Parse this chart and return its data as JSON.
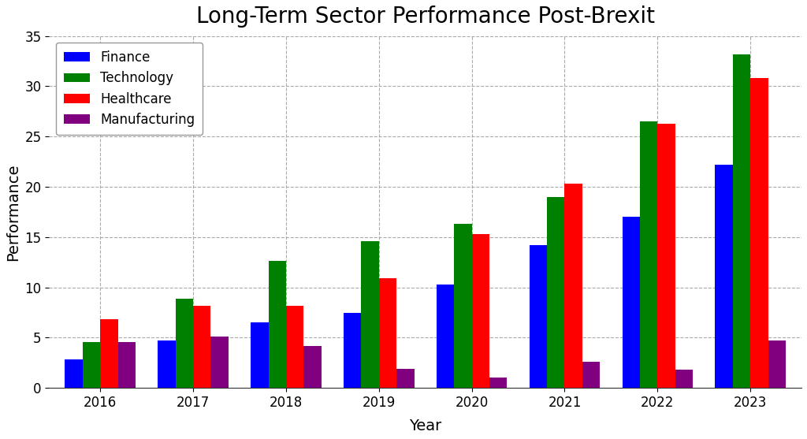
{
  "title": "Long-Term Sector Performance Post-Brexit",
  "xlabel": "Year",
  "ylabel": "Performance",
  "years": [
    2016,
    2017,
    2018,
    2019,
    2020,
    2021,
    2022,
    2023
  ],
  "sectors": {
    "Finance": {
      "values": [
        2.8,
        4.7,
        6.5,
        7.5,
        10.3,
        14.2,
        17.0,
        22.2
      ],
      "color": "#0000ff"
    },
    "Technology": {
      "values": [
        4.6,
        8.9,
        12.6,
        14.6,
        16.3,
        19.0,
        26.5,
        33.2
      ],
      "color": "#008000"
    },
    "Healthcare": {
      "values": [
        6.8,
        8.2,
        8.2,
        10.9,
        15.3,
        20.3,
        26.3,
        30.8
      ],
      "color": "#ff0000"
    },
    "Manufacturing": {
      "values": [
        4.6,
        5.1,
        4.2,
        1.9,
        1.0,
        2.6,
        1.8,
        4.7
      ],
      "color": "#800080"
    }
  },
  "ylim": [
    0,
    35
  ],
  "yticks": [
    0,
    5,
    10,
    15,
    20,
    25,
    30,
    35
  ],
  "bar_width": 0.19,
  "background_color": "#ffffff",
  "title_fontsize": 20,
  "axis_fontsize": 14,
  "tick_fontsize": 12,
  "legend_fontsize": 12,
  "grid_color": "#aaaaaa",
  "grid_linestyle": "--"
}
